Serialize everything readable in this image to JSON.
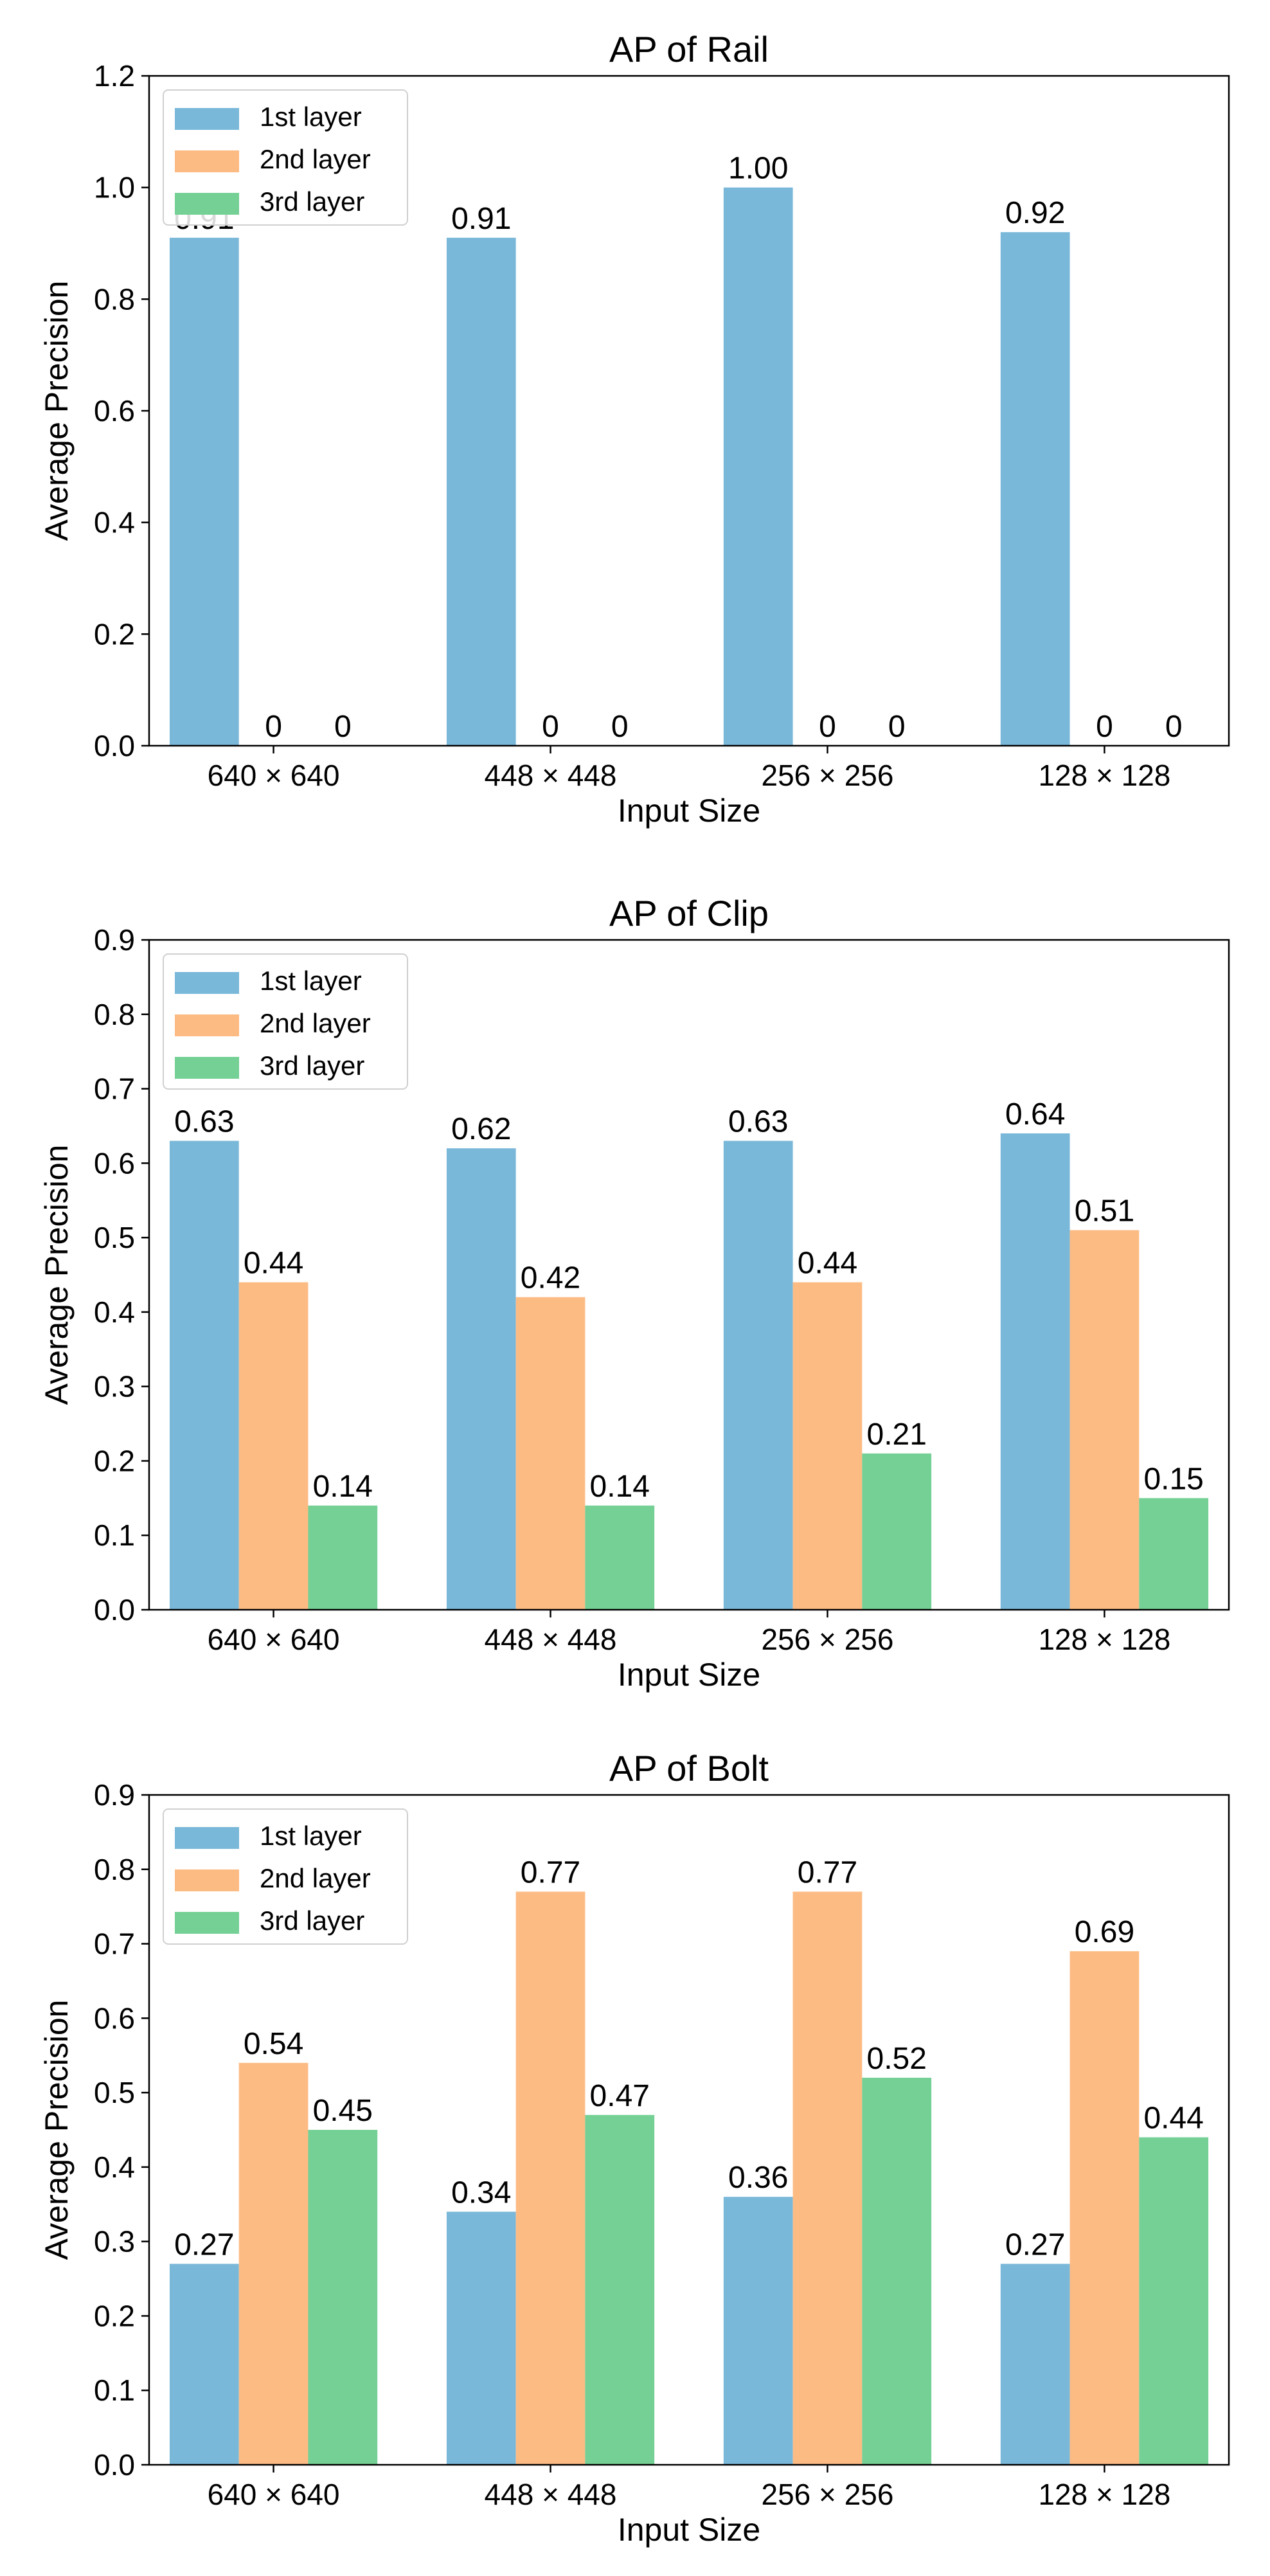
{
  "chart_data": [
    {
      "type": "bar",
      "title": "AP of Rail",
      "xlabel": "Input Size",
      "ylabel": "Average Precision",
      "ylim": [
        0,
        1.2
      ],
      "yticks": [
        "0.0",
        "0.2",
        "0.4",
        "0.6",
        "0.8",
        "1.0",
        "1.2"
      ],
      "categories": [
        "640 × 640",
        "448 × 448",
        "256 × 256",
        "128 × 128"
      ],
      "legend_position": "top-left",
      "grid": false,
      "series": [
        {
          "name": "1st layer",
          "color": "#7ab8d9",
          "values": [
            0.91,
            0.91,
            1.0,
            0.92
          ],
          "labels": [
            "0.91",
            "0.91",
            "1.00",
            "0.92"
          ]
        },
        {
          "name": "2nd layer",
          "color": "#fdbb84",
          "values": [
            0,
            0,
            0,
            0
          ],
          "labels": [
            "0",
            "0",
            "0",
            "0"
          ]
        },
        {
          "name": "3rd layer",
          "color": "#74d094",
          "values": [
            0,
            0,
            0,
            0
          ],
          "labels": [
            "0",
            "0",
            "0",
            "0"
          ]
        }
      ]
    },
    {
      "type": "bar",
      "title": "AP of Clip",
      "xlabel": "Input Size",
      "ylabel": "Average Precision",
      "ylim": [
        0,
        0.9
      ],
      "yticks": [
        "0.0",
        "0.1",
        "0.2",
        "0.3",
        "0.4",
        "0.5",
        "0.6",
        "0.7",
        "0.8",
        "0.9"
      ],
      "categories": [
        "640 × 640",
        "448 × 448",
        "256 × 256",
        "128 × 128"
      ],
      "legend_position": "top-left",
      "grid": false,
      "series": [
        {
          "name": "1st layer",
          "color": "#7ab8d9",
          "values": [
            0.63,
            0.62,
            0.63,
            0.64
          ],
          "labels": [
            "0.63",
            "0.62",
            "0.63",
            "0.64"
          ]
        },
        {
          "name": "2nd layer",
          "color": "#fdbb84",
          "values": [
            0.44,
            0.42,
            0.44,
            0.51
          ],
          "labels": [
            "0.44",
            "0.42",
            "0.44",
            "0.51"
          ]
        },
        {
          "name": "3rd layer",
          "color": "#74d094",
          "values": [
            0.14,
            0.14,
            0.21,
            0.15
          ],
          "labels": [
            "0.14",
            "0.14",
            "0.21",
            "0.15"
          ]
        }
      ]
    },
    {
      "type": "bar",
      "title": "AP of Bolt",
      "xlabel": "Input Size",
      "ylabel": "Average Precision",
      "ylim": [
        0,
        0.9
      ],
      "yticks": [
        "0.0",
        "0.1",
        "0.2",
        "0.3",
        "0.4",
        "0.5",
        "0.6",
        "0.7",
        "0.8",
        "0.9"
      ],
      "categories": [
        "640 × 640",
        "448 × 448",
        "256 × 256",
        "128 × 128"
      ],
      "legend_position": "top-left",
      "grid": false,
      "series": [
        {
          "name": "1st layer",
          "color": "#7ab8d9",
          "values": [
            0.27,
            0.34,
            0.36,
            0.27
          ],
          "labels": [
            "0.27",
            "0.34",
            "0.36",
            "0.27"
          ]
        },
        {
          "name": "2nd layer",
          "color": "#fdbb84",
          "values": [
            0.54,
            0.77,
            0.77,
            0.69
          ],
          "labels": [
            "0.54",
            "0.77",
            "0.77",
            "0.69"
          ]
        },
        {
          "name": "3rd layer",
          "color": "#74d094",
          "values": [
            0.45,
            0.47,
            0.52,
            0.44
          ],
          "labels": [
            "0.45",
            "0.47",
            "0.52",
            "0.44"
          ]
        }
      ]
    }
  ]
}
